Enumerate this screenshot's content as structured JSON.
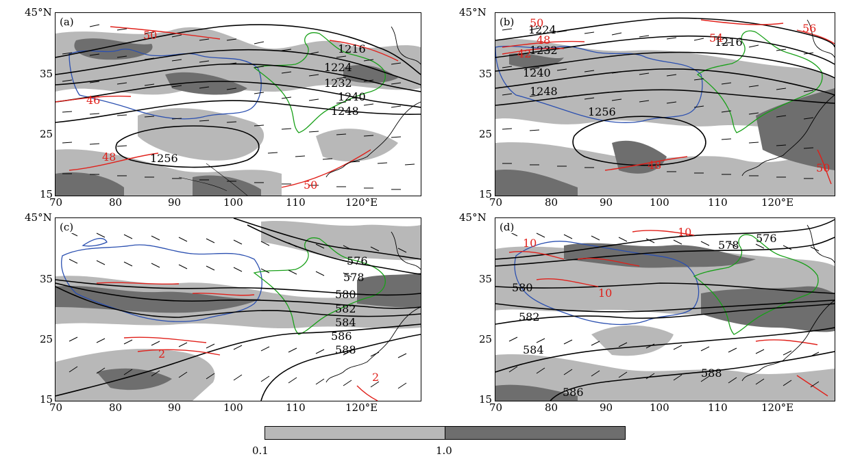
{
  "panels": [
    {
      "id": "a",
      "label": "(a)",
      "contour_labels_black": [
        "1216",
        "1224",
        "1232",
        "1240",
        "1248",
        "1256"
      ],
      "contour_labels_red": [
        "50",
        "46",
        "48",
        "50"
      ]
    },
    {
      "id": "b",
      "label": "(b)",
      "contour_labels_black": [
        "1224",
        "1232",
        "1216",
        "1240",
        "1248",
        "1256"
      ],
      "contour_labels_red": [
        "50",
        "42",
        "48",
        "54",
        "56",
        "48",
        "50"
      ]
    },
    {
      "id": "c",
      "label": "(c)",
      "contour_labels_black": [
        "576",
        "578",
        "580",
        "582",
        "584",
        "586",
        "588"
      ],
      "contour_labels_red": [
        "2",
        "2"
      ]
    },
    {
      "id": "d",
      "label": "(d)",
      "contour_labels_black": [
        "578",
        "576",
        "580",
        "582",
        "584",
        "588",
        "586"
      ],
      "contour_labels_red": [
        "10",
        "10",
        "10"
      ]
    }
  ],
  "axes": {
    "y_ticks": [
      "45°N",
      "35",
      "25",
      "15"
    ],
    "x_ticks": [
      "70",
      "80",
      "90",
      "100",
      "110",
      "120°E"
    ]
  },
  "legend": {
    "levels": [
      "0.1",
      "1.0"
    ],
    "colors": [
      "#b8b8b8",
      "#6e6e6e"
    ]
  },
  "colors": {
    "contour_black": "#000000",
    "contour_red": "#e0201a",
    "blue_boundary": "#2a4fb0",
    "green_boundary": "#18a018",
    "shade_light": "#b8b8b8",
    "shade_dark": "#6e6e6e"
  }
}
